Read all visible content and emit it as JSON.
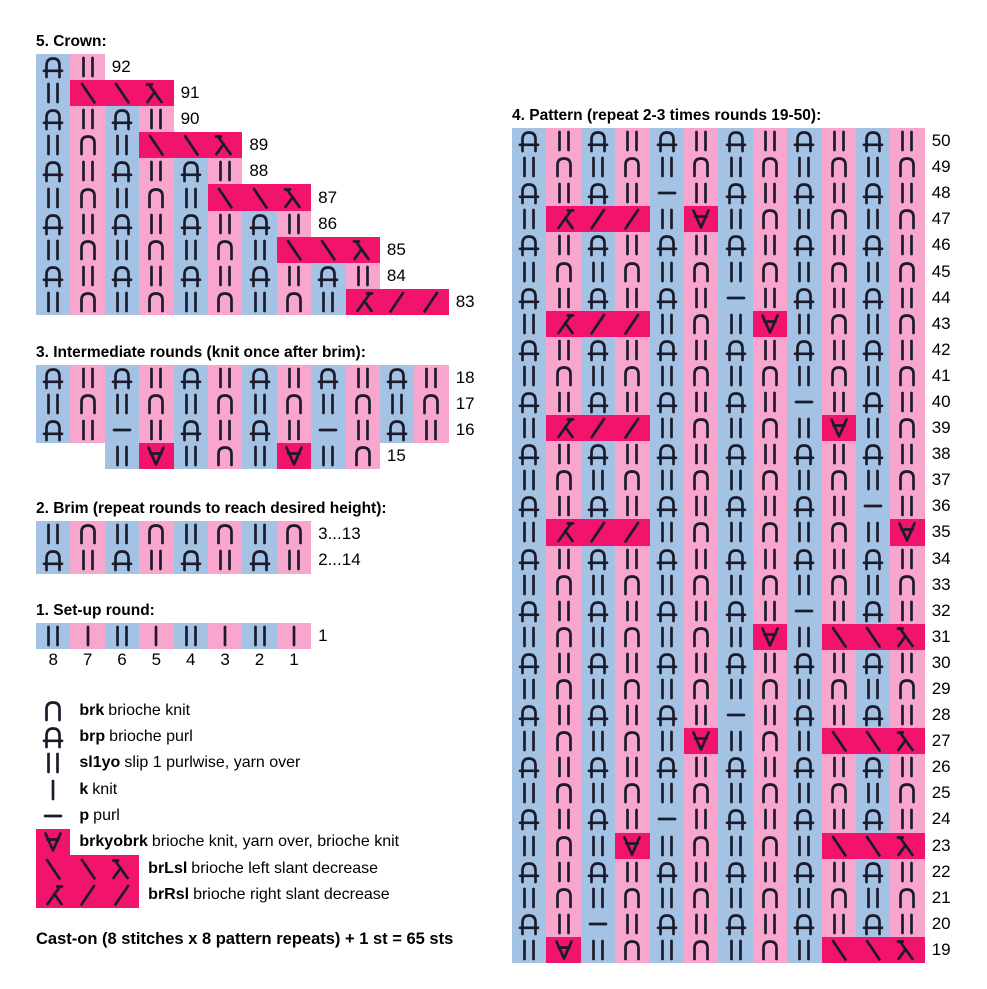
{
  "caston": "Cast-on (8 stitches x 8 pattern repeats) + 1 st = 65 sts",
  "colors": {
    "blue": "#A3C2E4",
    "pink": "#F9A6CE",
    "magenta": "#F2146C",
    "symbol_stroke": "#1B1B2B"
  },
  "crown": {
    "title": "5. Crown:",
    "rows": [
      {
        "label": "92",
        "cells": [
          "brp:b",
          "sl:p"
        ]
      },
      {
        "label": "91",
        "cells": [
          "sl:b",
          "bs:m",
          "bs:m",
          "la:m"
        ]
      },
      {
        "label": "90",
        "cells": [
          "brp:b",
          "sl:p",
          "brp:b",
          "sl:p"
        ]
      },
      {
        "label": "89",
        "cells": [
          "sl:b",
          "brk:p",
          "sl:b",
          "bs:m",
          "bs:m",
          "la:m"
        ]
      },
      {
        "label": "88",
        "cells": [
          "brp:b",
          "sl:p",
          "brp:b",
          "sl:p",
          "brp:b",
          "sl:p"
        ]
      },
      {
        "label": "87",
        "cells": [
          "sl:b",
          "brk:p",
          "sl:b",
          "brk:p",
          "sl:b",
          "bs:m",
          "bs:m",
          "la:m"
        ]
      },
      {
        "label": "86",
        "cells": [
          "brp:b",
          "sl:p",
          "brp:b",
          "sl:p",
          "brp:b",
          "sl:p",
          "brp:b",
          "sl:p"
        ]
      },
      {
        "label": "85",
        "cells": [
          "sl:b",
          "brk:p",
          "sl:b",
          "brk:p",
          "sl:b",
          "brk:p",
          "sl:b",
          "bs:m",
          "bs:m",
          "la:m"
        ]
      },
      {
        "label": "84",
        "cells": [
          "brp:b",
          "sl:p",
          "brp:b",
          "sl:p",
          "brp:b",
          "sl:p",
          "brp:b",
          "sl:p",
          "brp:b",
          "sl:p"
        ]
      },
      {
        "label": "83",
        "cells": [
          "sl:b",
          "brk:p",
          "sl:b",
          "brk:p",
          "sl:b",
          "brk:p",
          "sl:b",
          "brk:p",
          "sl:b",
          "rl:m",
          "fs:m",
          "fs:m"
        ]
      }
    ]
  },
  "intermediate": {
    "title": "3. Intermediate rounds (knit once after brim):",
    "rows": [
      {
        "label": "18",
        "cells": [
          "brp:b",
          "sl:p",
          "brp:b",
          "sl:p",
          "brp:b",
          "sl:p",
          "brp:b",
          "sl:p",
          "brp:b",
          "sl:p",
          "brp:b",
          "sl:p"
        ]
      },
      {
        "label": "17",
        "cells": [
          "sl:b",
          "brk:p",
          "sl:b",
          "brk:p",
          "sl:b",
          "brk:p",
          "sl:b",
          "brk:p",
          "sl:b",
          "brk:p",
          "sl:b",
          "brk:p"
        ]
      },
      {
        "label": "16",
        "cells": [
          "brp:b",
          "sl:p",
          "p:b",
          "sl:p",
          "brp:b",
          "sl:p",
          "brp:b",
          "sl:p",
          "p:b",
          "sl:p",
          "brp:b",
          "sl:p"
        ]
      },
      {
        "label": "15",
        "indent": 2,
        "cells": [
          "sl:b",
          "yo:m",
          "sl:b",
          "brk:p",
          "sl:b",
          "yo:m",
          "sl:b",
          "brk:p"
        ]
      }
    ]
  },
  "brim": {
    "title": "2. Brim (repeat rounds to reach desired height):",
    "rows": [
      {
        "label": "3...13",
        "cells": [
          "sl:b",
          "brk:p",
          "sl:b",
          "brk:p",
          "sl:b",
          "brk:p",
          "sl:b",
          "brk:p"
        ]
      },
      {
        "label": "2...14",
        "cells": [
          "brp:b",
          "sl:p",
          "brp:b",
          "sl:p",
          "brp:b",
          "sl:p",
          "brp:b",
          "sl:p"
        ]
      }
    ]
  },
  "setup": {
    "title": "1. Set-up round:",
    "rows": [
      {
        "label": "1",
        "cells": [
          "sl:b",
          "k:p",
          "sl:b",
          "k:p",
          "sl:b",
          "k:p",
          "sl:b",
          "k:p"
        ]
      }
    ],
    "column_numbers": [
      "8",
      "7",
      "6",
      "5",
      "4",
      "3",
      "2",
      "1"
    ]
  },
  "pattern": {
    "title": "4. Pattern (repeat 2-3 times rounds 19-50):",
    "rows": [
      {
        "label": "50",
        "cells": [
          "brp:b",
          "sl:p",
          "brp:b",
          "sl:p",
          "brp:b",
          "sl:p",
          "brp:b",
          "sl:p",
          "brp:b",
          "sl:p",
          "brp:b",
          "sl:p"
        ]
      },
      {
        "label": "49",
        "cells": [
          "sl:b",
          "brk:p",
          "sl:b",
          "brk:p",
          "sl:b",
          "brk:p",
          "sl:b",
          "brk:p",
          "sl:b",
          "brk:p",
          "sl:b",
          "brk:p"
        ]
      },
      {
        "label": "48",
        "cells": [
          "brp:b",
          "sl:p",
          "brp:b",
          "sl:p",
          "p:b",
          "sl:p",
          "brp:b",
          "sl:p",
          "brp:b",
          "sl:p",
          "brp:b",
          "sl:p"
        ]
      },
      {
        "label": "47",
        "cells": [
          "sl:b",
          "rl:m",
          "fs:m",
          "fs:m",
          "sl:b",
          "yo:m",
          "sl:b",
          "brk:p",
          "sl:b",
          "brk:p",
          "sl:b",
          "brk:p"
        ]
      },
      {
        "label": "46",
        "cells": [
          "brp:b",
          "sl:p",
          "brp:b",
          "sl:p",
          "brp:b",
          "sl:p",
          "brp:b",
          "sl:p",
          "brp:b",
          "sl:p",
          "brp:b",
          "sl:p"
        ]
      },
      {
        "label": "45",
        "cells": [
          "sl:b",
          "brk:p",
          "sl:b",
          "brk:p",
          "sl:b",
          "brk:p",
          "sl:b",
          "brk:p",
          "sl:b",
          "brk:p",
          "sl:b",
          "brk:p"
        ]
      },
      {
        "label": "44",
        "cells": [
          "brp:b",
          "sl:p",
          "brp:b",
          "sl:p",
          "brp:b",
          "sl:p",
          "p:b",
          "sl:p",
          "brp:b",
          "sl:p",
          "brp:b",
          "sl:p"
        ]
      },
      {
        "label": "43",
        "cells": [
          "sl:b",
          "rl:m",
          "fs:m",
          "fs:m",
          "sl:b",
          "brk:p",
          "sl:b",
          "yo:m",
          "sl:b",
          "brk:p",
          "sl:b",
          "brk:p"
        ]
      },
      {
        "label": "42",
        "cells": [
          "brp:b",
          "sl:p",
          "brp:b",
          "sl:p",
          "brp:b",
          "sl:p",
          "brp:b",
          "sl:p",
          "brp:b",
          "sl:p",
          "brp:b",
          "sl:p"
        ]
      },
      {
        "label": "41",
        "cells": [
          "sl:b",
          "brk:p",
          "sl:b",
          "brk:p",
          "sl:b",
          "brk:p",
          "sl:b",
          "brk:p",
          "sl:b",
          "brk:p",
          "sl:b",
          "brk:p"
        ]
      },
      {
        "label": "40",
        "cells": [
          "brp:b",
          "sl:p",
          "brp:b",
          "sl:p",
          "brp:b",
          "sl:p",
          "brp:b",
          "sl:p",
          "p:b",
          "sl:p",
          "brp:b",
          "sl:p"
        ]
      },
      {
        "label": "39",
        "cells": [
          "sl:b",
          "rl:m",
          "fs:m",
          "fs:m",
          "sl:b",
          "brk:p",
          "sl:b",
          "brk:p",
          "sl:b",
          "yo:m",
          "sl:b",
          "brk:p"
        ]
      },
      {
        "label": "38",
        "cells": [
          "brp:b",
          "sl:p",
          "brp:b",
          "sl:p",
          "brp:b",
          "sl:p",
          "brp:b",
          "sl:p",
          "brp:b",
          "sl:p",
          "brp:b",
          "sl:p"
        ]
      },
      {
        "label": "37",
        "cells": [
          "sl:b",
          "brk:p",
          "sl:b",
          "brk:p",
          "sl:b",
          "brk:p",
          "sl:b",
          "brk:p",
          "sl:b",
          "brk:p",
          "sl:b",
          "brk:p"
        ]
      },
      {
        "label": "36",
        "cells": [
          "brp:b",
          "sl:p",
          "brp:b",
          "sl:p",
          "brp:b",
          "sl:p",
          "brp:b",
          "sl:p",
          "brp:b",
          "sl:p",
          "p:b",
          "sl:p"
        ]
      },
      {
        "label": "35",
        "cells": [
          "sl:b",
          "rl:m",
          "fs:m",
          "fs:m",
          "sl:b",
          "brk:p",
          "sl:b",
          "brk:p",
          "sl:b",
          "brk:p",
          "sl:b",
          "yo:m"
        ]
      },
      {
        "label": "34",
        "cells": [
          "brp:b",
          "sl:p",
          "brp:b",
          "sl:p",
          "brp:b",
          "sl:p",
          "brp:b",
          "sl:p",
          "brp:b",
          "sl:p",
          "brp:b",
          "sl:p"
        ]
      },
      {
        "label": "33",
        "cells": [
          "sl:b",
          "brk:p",
          "sl:b",
          "brk:p",
          "sl:b",
          "brk:p",
          "sl:b",
          "brk:p",
          "sl:b",
          "brk:p",
          "sl:b",
          "brk:p"
        ]
      },
      {
        "label": "32",
        "cells": [
          "brp:b",
          "sl:p",
          "brp:b",
          "sl:p",
          "brp:b",
          "sl:p",
          "brp:b",
          "sl:p",
          "p:b",
          "sl:p",
          "brp:b",
          "sl:p"
        ]
      },
      {
        "label": "31",
        "cells": [
          "sl:b",
          "brk:p",
          "sl:b",
          "brk:p",
          "sl:b",
          "brk:p",
          "sl:b",
          "yo:m",
          "sl:b",
          "bs:m",
          "bs:m",
          "la:m"
        ]
      },
      {
        "label": "30",
        "cells": [
          "brp:b",
          "sl:p",
          "brp:b",
          "sl:p",
          "brp:b",
          "sl:p",
          "brp:b",
          "sl:p",
          "brp:b",
          "sl:p",
          "brp:b",
          "sl:p"
        ]
      },
      {
        "label": "29",
        "cells": [
          "sl:b",
          "brk:p",
          "sl:b",
          "brk:p",
          "sl:b",
          "brk:p",
          "sl:b",
          "brk:p",
          "sl:b",
          "brk:p",
          "sl:b",
          "brk:p"
        ]
      },
      {
        "label": "28",
        "cells": [
          "brp:b",
          "sl:p",
          "brp:b",
          "sl:p",
          "brp:b",
          "sl:p",
          "p:b",
          "sl:p",
          "brp:b",
          "sl:p",
          "brp:b",
          "sl:p"
        ]
      },
      {
        "label": "27",
        "cells": [
          "sl:b",
          "brk:p",
          "sl:b",
          "brk:p",
          "sl:b",
          "yo:m",
          "sl:b",
          "brk:p",
          "sl:b",
          "bs:m",
          "bs:m",
          "la:m"
        ]
      },
      {
        "label": "26",
        "cells": [
          "brp:b",
          "sl:p",
          "brp:b",
          "sl:p",
          "brp:b",
          "sl:p",
          "brp:b",
          "sl:p",
          "brp:b",
          "sl:p",
          "brp:b",
          "sl:p"
        ]
      },
      {
        "label": "25",
        "cells": [
          "sl:b",
          "brk:p",
          "sl:b",
          "brk:p",
          "sl:b",
          "brk:p",
          "sl:b",
          "brk:p",
          "sl:b",
          "brk:p",
          "sl:b",
          "brk:p"
        ]
      },
      {
        "label": "24",
        "cells": [
          "brp:b",
          "sl:p",
          "brp:b",
          "sl:p",
          "p:b",
          "sl:p",
          "brp:b",
          "sl:p",
          "brp:b",
          "sl:p",
          "brp:b",
          "sl:p"
        ]
      },
      {
        "label": "23",
        "cells": [
          "sl:b",
          "brk:p",
          "sl:b",
          "yo:m",
          "sl:b",
          "brk:p",
          "sl:b",
          "brk:p",
          "sl:b",
          "bs:m",
          "bs:m",
          "la:m"
        ]
      },
      {
        "label": "22",
        "cells": [
          "brp:b",
          "sl:p",
          "brp:b",
          "sl:p",
          "brp:b",
          "sl:p",
          "brp:b",
          "sl:p",
          "brp:b",
          "sl:p",
          "brp:b",
          "sl:p"
        ]
      },
      {
        "label": "21",
        "cells": [
          "sl:b",
          "brk:p",
          "sl:b",
          "brk:p",
          "sl:b",
          "brk:p",
          "sl:b",
          "brk:p",
          "sl:b",
          "brk:p",
          "sl:b",
          "brk:p"
        ]
      },
      {
        "label": "20",
        "cells": [
          "brp:b",
          "sl:p",
          "p:b",
          "sl:p",
          "brp:b",
          "sl:p",
          "brp:b",
          "sl:p",
          "brp:b",
          "sl:p",
          "brp:b",
          "sl:p"
        ]
      },
      {
        "label": "19",
        "cells": [
          "sl:b",
          "yo:m",
          "sl:b",
          "brk:p",
          "sl:b",
          "brk:p",
          "sl:b",
          "brk:p",
          "sl:b",
          "bs:m",
          "bs:m",
          "la:m"
        ]
      }
    ]
  },
  "legend": {
    "items": [
      {
        "symbol_cells": [
          "brk:n"
        ],
        "abbr": "brk",
        "desc": "brioche knit"
      },
      {
        "symbol_cells": [
          "brp:n"
        ],
        "abbr": "brp",
        "desc": "brioche purl"
      },
      {
        "symbol_cells": [
          "sl:n"
        ],
        "abbr": "sl1yo",
        "desc": "slip 1 purlwise, yarn over"
      },
      {
        "symbol_cells": [
          "k:n"
        ],
        "abbr": "k",
        "desc": "knit"
      },
      {
        "symbol_cells": [
          "p:n"
        ],
        "abbr": "p",
        "desc": "purl"
      },
      {
        "symbol_cells": [
          "yo:m"
        ],
        "abbr": "brkyobrk",
        "desc": "brioche knit, yarn over, brioche knit"
      },
      {
        "symbol_cells": [
          "bs:m",
          "bs:m",
          "la:m"
        ],
        "abbr": "brLsl",
        "desc": "brioche left slant decrease"
      },
      {
        "symbol_cells": [
          "rl:m",
          "fs:m",
          "fs:m"
        ],
        "abbr": "brRsl",
        "desc": "brioche right slant decrease"
      }
    ]
  }
}
